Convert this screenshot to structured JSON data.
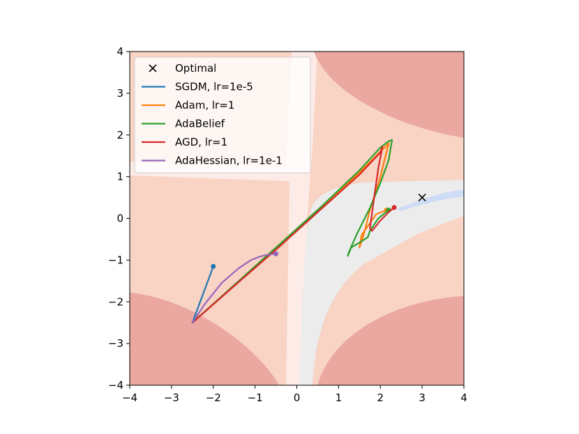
{
  "chart_data": {
    "type": "line",
    "title": "",
    "xlabel": "",
    "ylabel": "",
    "xlim": [
      -4,
      4
    ],
    "ylim": [
      -4,
      4
    ],
    "xticks": [
      -4,
      -3,
      -2,
      -1,
      0,
      1,
      2,
      3,
      4
    ],
    "yticks": [
      -4,
      -3,
      -2,
      -1,
      0,
      1,
      2,
      3,
      4
    ],
    "xtick_labels": [
      "−4",
      "−3",
      "−2",
      "−1",
      "0",
      "1",
      "2",
      "3",
      "4"
    ],
    "ytick_labels": [
      "−4",
      "−3",
      "−2",
      "−1",
      "0",
      "1",
      "2",
      "3",
      "4"
    ],
    "grid": false,
    "legend_position": "top-left",
    "background_contour_colors": {
      "high": "#eaa8a0",
      "mid": "#f9d3c4",
      "light": "#fcebe6",
      "near_zero": "#ececec",
      "low": "#cfdcf6"
    },
    "optimal": {
      "label": "Optimal",
      "x": 3.0,
      "y": 0.5,
      "marker": "x",
      "color": "#000000"
    },
    "series": [
      {
        "name": "SGDM, lr=1e-5",
        "color": "#1f77b4",
        "x": [
          -2.5,
          -2.0
        ],
        "y": [
          -2.5,
          -1.15
        ]
      },
      {
        "name": "Adam, lr=1",
        "color": "#ff7f0e",
        "x": [
          -2.5,
          -1.5,
          -0.5,
          0.5,
          1.5,
          2.1,
          2.2,
          2.0,
          1.75,
          1.6,
          1.5,
          1.55,
          1.9,
          2.15
        ],
        "y": [
          -2.5,
          -1.6,
          -0.7,
          0.2,
          1.1,
          1.7,
          1.8,
          1.0,
          0.2,
          -0.4,
          -0.7,
          -0.4,
          0.1,
          0.2
        ]
      },
      {
        "name": "AdaBelief",
        "color": "#2ca02c",
        "x": [
          -2.5,
          -1.5,
          -0.5,
          0.5,
          1.5,
          2.0,
          2.2,
          2.28,
          2.2,
          2.0,
          1.75,
          1.45,
          1.25,
          1.22,
          1.3,
          1.55,
          1.7,
          1.75,
          1.95,
          2.2
        ],
        "y": [
          -2.5,
          -1.6,
          -0.7,
          0.2,
          1.15,
          1.7,
          1.85,
          1.88,
          1.4,
          0.85,
          0.25,
          -0.35,
          -0.8,
          -0.9,
          -0.7,
          -0.55,
          -0.45,
          -0.3,
          0.0,
          0.2
        ]
      },
      {
        "name": "AGD, lr=1",
        "color": "#d62728",
        "x": [
          -2.5,
          -1.5,
          -0.5,
          0.5,
          1.5,
          2.0,
          2.05,
          1.95,
          1.85,
          1.75,
          1.8,
          2.0,
          2.2,
          2.33
        ],
        "y": [
          -2.5,
          -1.62,
          -0.75,
          0.15,
          1.05,
          1.58,
          1.72,
          1.2,
          0.5,
          -0.25,
          -0.3,
          -0.05,
          0.15,
          0.26
        ]
      },
      {
        "name": "AdaHessian, lr=1e-1",
        "color": "#9467bd",
        "x": [
          -2.5,
          -2.2,
          -1.8,
          -1.4,
          -1.1,
          -0.9,
          -0.7,
          -0.5
        ],
        "y": [
          -2.5,
          -2.05,
          -1.55,
          -1.2,
          -1.0,
          -0.92,
          -0.87,
          -0.85
        ]
      }
    ]
  }
}
